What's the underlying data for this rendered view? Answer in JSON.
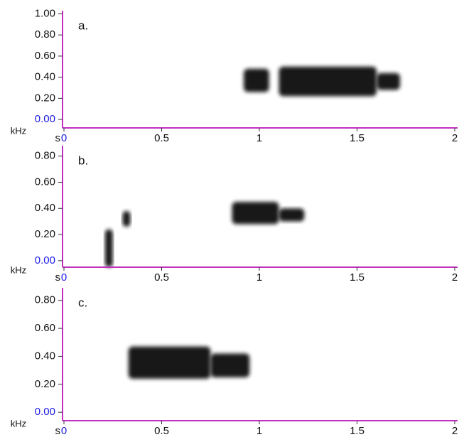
{
  "chart_data": [
    {
      "type": "spectrogram",
      "label": "a.",
      "x_label": "s",
      "y_label": "kHz",
      "color": "#000000",
      "axis_color": "#c030c0",
      "zero_label_color": "#1a1ae6",
      "xlim": [
        0,
        2
      ],
      "xticks": [
        0,
        0.5,
        1,
        1.5,
        2
      ],
      "ylim": [
        -0.08,
        1.03
      ],
      "yticks": [
        {
          "value": 0,
          "label": "0.00"
        },
        {
          "value": 0.2,
          "label": "0.20"
        },
        {
          "value": 0.4,
          "label": "0.40"
        },
        {
          "value": 0.6,
          "label": "0.60"
        },
        {
          "value": 0.8,
          "label": "0.80"
        },
        {
          "value": 1,
          "label": "1.00"
        }
      ],
      "segments": [
        {
          "x": [
            0.92,
            1.05
          ],
          "y": [
            0.26,
            0.48
          ]
        },
        {
          "x": [
            1.1,
            1.6
          ],
          "y": [
            0.22,
            0.5
          ]
        },
        {
          "x": [
            1.6,
            1.72
          ],
          "y": [
            0.28,
            0.44
          ]
        }
      ]
    },
    {
      "type": "spectrogram",
      "label": "b.",
      "x_label": "s",
      "y_label": "kHz",
      "color": "#000000",
      "axis_color": "#c030c0",
      "zero_label_color": "#1a1ae6",
      "xlim": [
        0,
        2
      ],
      "xticks": [
        0,
        0.5,
        1,
        1.5,
        2
      ],
      "ylim": [
        -0.05,
        0.88
      ],
      "yticks": [
        {
          "value": 0,
          "label": "0.00"
        },
        {
          "value": 0.2,
          "label": "0.20"
        },
        {
          "value": 0.4,
          "label": "0.40"
        },
        {
          "value": 0.6,
          "label": "0.60"
        },
        {
          "value": 0.8,
          "label": "0.80"
        }
      ],
      "segments": [
        {
          "x": [
            0.21,
            0.25
          ],
          "y": [
            -0.05,
            0.24
          ]
        },
        {
          "x": [
            0.3,
            0.34
          ],
          "y": [
            0.26,
            0.38
          ]
        },
        {
          "x": [
            0.86,
            1.1
          ],
          "y": [
            0.28,
            0.45
          ]
        },
        {
          "x": [
            1.1,
            1.23
          ],
          "y": [
            0.3,
            0.4
          ]
        }
      ]
    },
    {
      "type": "spectrogram",
      "label": "c.",
      "x_label": "s",
      "y_label": "kHz",
      "color": "#000000",
      "axis_color": "#c030c0",
      "zero_label_color": "#1a1ae6",
      "xlim": [
        0,
        2
      ],
      "xticks": [
        0,
        0.5,
        1,
        1.5,
        2
      ],
      "ylim": [
        -0.06,
        0.89
      ],
      "yticks": [
        {
          "value": 0,
          "label": "0.00"
        },
        {
          "value": 0.2,
          "label": "0.20"
        },
        {
          "value": 0.4,
          "label": "0.40"
        },
        {
          "value": 0.6,
          "label": "0.60"
        },
        {
          "value": 0.8,
          "label": "0.80"
        }
      ],
      "segments": [
        {
          "x": [
            0.33,
            0.75
          ],
          "y": [
            0.24,
            0.47
          ]
        },
        {
          "x": [
            0.75,
            0.95
          ],
          "y": [
            0.25,
            0.42
          ]
        }
      ]
    }
  ]
}
